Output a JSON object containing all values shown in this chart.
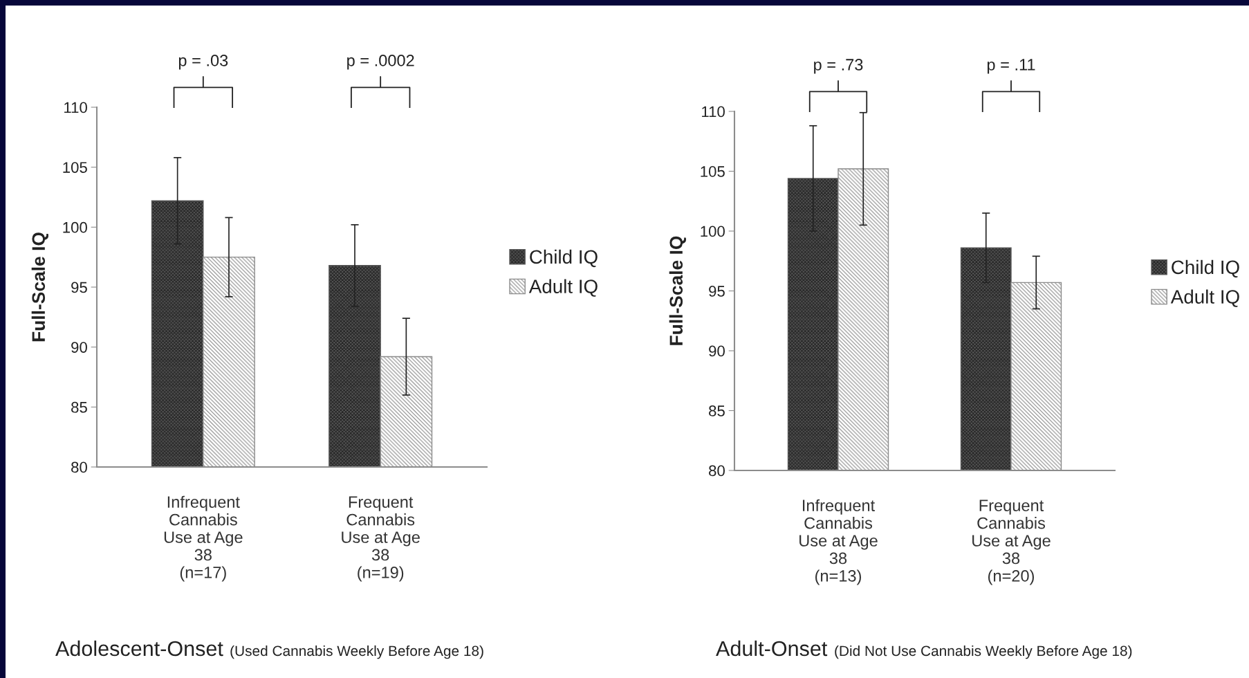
{
  "chart_data": [
    {
      "type": "bar",
      "ylabel": "Full-Scale IQ",
      "categories": [
        "Infrequent\nCannabis\nUse at Age\n38\n(n=17)",
        "Frequent\nCannabis\nUse at Age\n38\n(n=19)"
      ],
      "series": [
        {
          "name": "Child IQ",
          "color": "#595959",
          "values": [
            102.2,
            96.8
          ],
          "errors": [
            3.6,
            3.4
          ]
        },
        {
          "name": "Adult IQ",
          "color": "#8c8c8c",
          "values": [
            97.5,
            89.2
          ],
          "errors": [
            3.3,
            3.2
          ]
        }
      ],
      "ylim": [
        80,
        110
      ],
      "yticks": [
        80,
        85,
        90,
        95,
        100,
        105,
        110
      ],
      "grid": false,
      "legend": "right",
      "annotations": [
        "p = .03",
        "p = .0002",
        "Adolescent-Onset",
        "(Used Cannabis Weekly Before Age 18)"
      ]
    },
    {
      "type": "bar",
      "ylabel": "Full-Scale IQ",
      "categories": [
        "Infrequent\nCannabis\nUse at Age\n38\n(n=13)",
        "Frequent\nCannabis\nUse at Age\n38\n(n=20)"
      ],
      "series": [
        {
          "name": "Child IQ",
          "color": "#595959",
          "values": [
            104.4,
            98.6
          ],
          "errors": [
            4.4,
            2.9
          ]
        },
        {
          "name": "Adult IQ",
          "color": "#8c8c8c",
          "values": [
            105.2,
            95.7
          ],
          "errors": [
            4.7,
            2.2
          ]
        }
      ],
      "ylim": [
        80,
        110
      ],
      "yticks": [
        80,
        85,
        90,
        95,
        100,
        105,
        110
      ],
      "grid": false,
      "legend": "right",
      "annotations": [
        "p = .73",
        "p = .11",
        "Adult-Onset",
        "(Did Not Use Cannabis Weekly Before Age 18)"
      ]
    }
  ]
}
